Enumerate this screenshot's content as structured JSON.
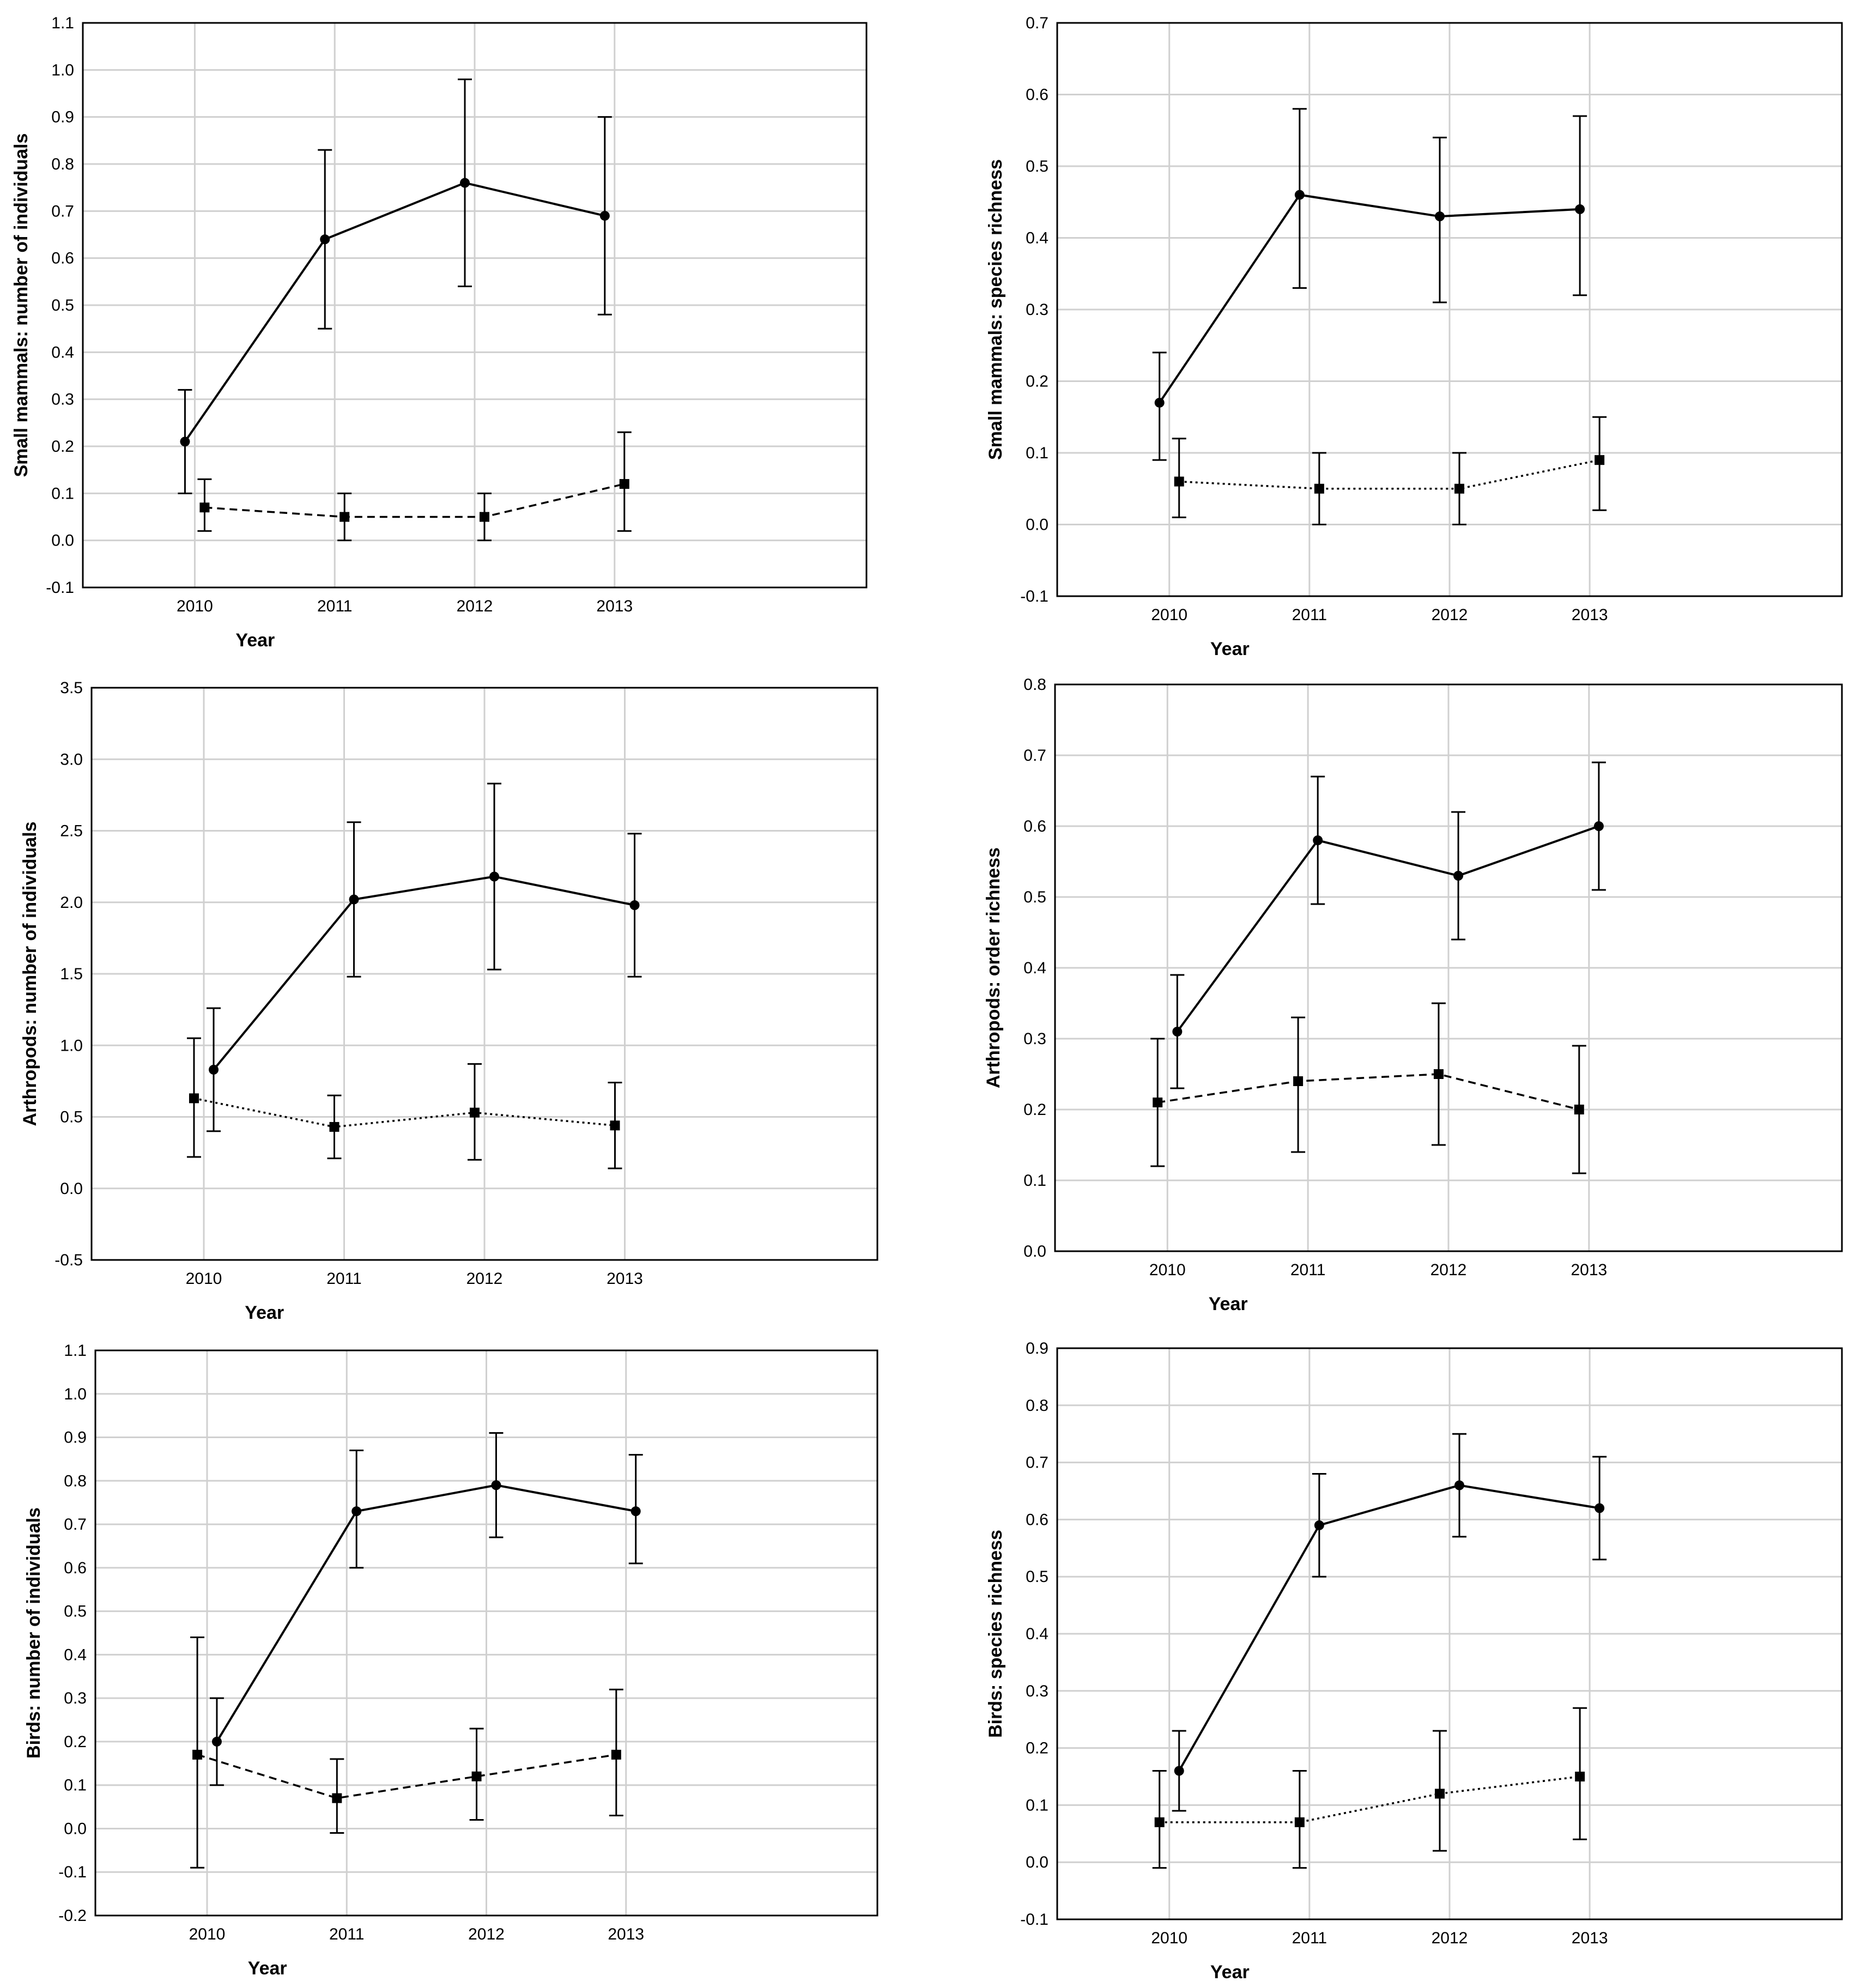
{
  "figure": {
    "background": "#ffffff",
    "grid_color": "#d0d0d0",
    "line_color": "#000000"
  },
  "chart_data": [
    {
      "type": "line",
      "position": "top-left",
      "title": "",
      "xlabel": "Year",
      "ylabel": "Small mammals: number of individuals",
      "categories": [
        "2010",
        "2011",
        "2012",
        "2013"
      ],
      "ylim": [
        -0.1,
        1.1
      ],
      "yticks": [
        -0.1,
        0.0,
        0.1,
        0.2,
        0.3,
        0.4,
        0.5,
        0.6,
        0.7,
        0.8,
        0.9,
        1.0,
        1.1
      ],
      "ytick_decimals": 1,
      "grid": true,
      "series": [
        {
          "name": "solid",
          "style": "solid",
          "marker": "circle",
          "offset": -0.07,
          "values": [
            0.21,
            0.64,
            0.76,
            0.69
          ],
          "lower": [
            0.1,
            0.45,
            0.54,
            0.48
          ],
          "upper": [
            0.32,
            0.83,
            0.98,
            0.9
          ]
        },
        {
          "name": "dashed",
          "style": "dashed",
          "marker": "square",
          "offset": 0.07,
          "values": [
            0.07,
            0.05,
            0.05,
            0.12
          ],
          "lower": [
            0.02,
            0.0,
            0.0,
            0.02
          ],
          "upper": [
            0.13,
            0.1,
            0.1,
            0.23
          ]
        }
      ]
    },
    {
      "type": "line",
      "position": "top-right",
      "title": "",
      "xlabel": "Year",
      "ylabel": "Small mammals: species richness",
      "categories": [
        "2010",
        "2011",
        "2012",
        "2013"
      ],
      "ylim": [
        -0.1,
        0.7
      ],
      "yticks": [
        -0.1,
        0.0,
        0.1,
        0.2,
        0.3,
        0.4,
        0.5,
        0.6,
        0.7
      ],
      "ytick_decimals": 1,
      "grid": true,
      "series": [
        {
          "name": "solid",
          "style": "solid",
          "marker": "circle",
          "offset": -0.07,
          "values": [
            0.17,
            0.46,
            0.43,
            0.44
          ],
          "lower": [
            0.09,
            0.33,
            0.31,
            0.32
          ],
          "upper": [
            0.24,
            0.58,
            0.54,
            0.57
          ]
        },
        {
          "name": "dotted",
          "style": "dotted",
          "marker": "square",
          "offset": 0.07,
          "values": [
            0.06,
            0.05,
            0.05,
            0.09
          ],
          "lower": [
            0.01,
            0.0,
            0.0,
            0.02
          ],
          "upper": [
            0.12,
            0.1,
            0.1,
            0.15
          ]
        }
      ]
    },
    {
      "type": "line",
      "position": "middle-left",
      "title": "",
      "xlabel": "Year",
      "ylabel": "Arthropods: number of individuals",
      "categories": [
        "2010",
        "2011",
        "2012",
        "2013"
      ],
      "ylim": [
        -0.5,
        3.5
      ],
      "yticks": [
        -0.5,
        0.0,
        0.5,
        1.0,
        1.5,
        2.0,
        2.5,
        3.0,
        3.5
      ],
      "ytick_decimals": 1,
      "grid": true,
      "series": [
        {
          "name": "solid",
          "style": "solid",
          "marker": "circle",
          "offset": 0.07,
          "values": [
            0.83,
            2.02,
            2.18,
            1.98
          ],
          "lower": [
            0.4,
            1.48,
            1.53,
            1.48
          ],
          "upper": [
            1.26,
            2.56,
            2.83,
            2.48
          ]
        },
        {
          "name": "dotted",
          "style": "dotted",
          "marker": "square",
          "offset": -0.07,
          "values": [
            0.63,
            0.43,
            0.53,
            0.44
          ],
          "lower": [
            0.22,
            0.21,
            0.2,
            0.14
          ],
          "upper": [
            1.05,
            0.65,
            0.87,
            0.74
          ]
        }
      ]
    },
    {
      "type": "line",
      "position": "middle-right",
      "title": "",
      "xlabel": "Year",
      "ylabel": "Arthropods: order richness",
      "categories": [
        "2010",
        "2011",
        "2012",
        "2013"
      ],
      "ylim": [
        0.0,
        0.8
      ],
      "yticks": [
        0.0,
        0.1,
        0.2,
        0.3,
        0.4,
        0.5,
        0.6,
        0.7,
        0.8
      ],
      "ytick_decimals": 1,
      "grid": true,
      "series": [
        {
          "name": "solid",
          "style": "solid",
          "marker": "circle",
          "offset": 0.07,
          "values": [
            0.31,
            0.58,
            0.53,
            0.6
          ],
          "lower": [
            0.23,
            0.49,
            0.44,
            0.51
          ],
          "upper": [
            0.39,
            0.67,
            0.62,
            0.69
          ]
        },
        {
          "name": "dashed",
          "style": "dashed",
          "marker": "square",
          "offset": -0.07,
          "values": [
            0.21,
            0.24,
            0.25,
            0.2
          ],
          "lower": [
            0.12,
            0.14,
            0.15,
            0.11
          ],
          "upper": [
            0.3,
            0.33,
            0.35,
            0.29
          ]
        }
      ]
    },
    {
      "type": "line",
      "position": "bottom-left",
      "title": "",
      "xlabel": "Year",
      "ylabel": "Birds: number of individuals",
      "categories": [
        "2010",
        "2011",
        "2012",
        "2013"
      ],
      "ylim": [
        -0.2,
        1.1
      ],
      "yticks": [
        -0.2,
        -0.1,
        0.0,
        0.1,
        0.2,
        0.3,
        0.4,
        0.5,
        0.6,
        0.7,
        0.8,
        0.9,
        1.0,
        1.1
      ],
      "ytick_decimals": 1,
      "grid": true,
      "series": [
        {
          "name": "solid",
          "style": "solid",
          "marker": "circle",
          "offset": 0.07,
          "values": [
            0.2,
            0.73,
            0.79,
            0.73
          ],
          "lower": [
            0.1,
            0.6,
            0.67,
            0.61
          ],
          "upper": [
            0.3,
            0.87,
            0.91,
            0.86
          ]
        },
        {
          "name": "dashed",
          "style": "dashed",
          "marker": "square",
          "offset": -0.07,
          "values": [
            0.17,
            0.07,
            0.12,
            0.17
          ],
          "lower": [
            -0.09,
            -0.01,
            0.02,
            0.03
          ],
          "upper": [
            0.44,
            0.16,
            0.23,
            0.32
          ]
        }
      ]
    },
    {
      "type": "line",
      "position": "bottom-right",
      "title": "",
      "xlabel": "Year",
      "ylabel": "Birds: species richness",
      "categories": [
        "2010",
        "2011",
        "2012",
        "2013"
      ],
      "ylim": [
        -0.1,
        0.9
      ],
      "yticks": [
        -0.1,
        0.0,
        0.1,
        0.2,
        0.3,
        0.4,
        0.5,
        0.6,
        0.7,
        0.8,
        0.9
      ],
      "ytick_decimals": 1,
      "grid": true,
      "series": [
        {
          "name": "solid",
          "style": "solid",
          "marker": "circle",
          "offset": 0.07,
          "values": [
            0.16,
            0.59,
            0.66,
            0.62
          ],
          "lower": [
            0.09,
            0.5,
            0.57,
            0.53
          ],
          "upper": [
            0.23,
            0.68,
            0.75,
            0.71
          ]
        },
        {
          "name": "dotted",
          "style": "dotted",
          "marker": "square",
          "offset": -0.07,
          "values": [
            0.07,
            0.07,
            0.12,
            0.15
          ],
          "lower": [
            -0.01,
            -0.01,
            0.02,
            0.04
          ],
          "upper": [
            0.16,
            0.16,
            0.23,
            0.27
          ]
        }
      ]
    }
  ]
}
